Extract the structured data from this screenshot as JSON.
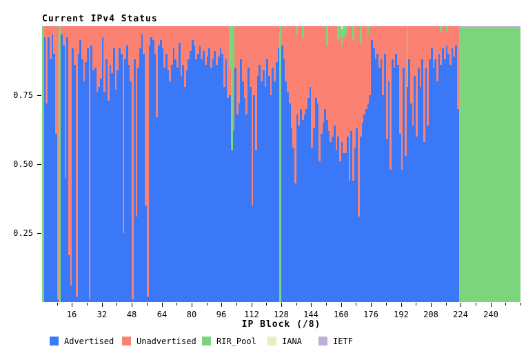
{
  "chart_data": {
    "type": "bar",
    "variant": "stacked-fraction-per-block",
    "title": "Current IPv4 Status",
    "xlabel": "IP Block (/8)",
    "blocks": 256,
    "ylim": [
      0,
      1
    ],
    "grid": "off",
    "legend_position": "bottom",
    "y_ticks": [
      {
        "value": 0.75,
        "label": "0.75"
      },
      {
        "value": 0.5,
        "label": "0.50"
      },
      {
        "value": 0.25,
        "label": "0.25"
      }
    ],
    "x_major_ticks": [
      16,
      32,
      48,
      64,
      80,
      96,
      112,
      128,
      144,
      160,
      176,
      192,
      208,
      224,
      240
    ],
    "x_minor_tick_step": 8,
    "colors": {
      "advertised": "#3a78f8",
      "unadvertised": "#fb8272",
      "rir_pool": "#7cd57c",
      "iana": "#ebebc4",
      "ietf": "#bcaed8"
    },
    "legend": [
      {
        "label": "Advertised",
        "key": "advertised",
        "color": "#3a78f8"
      },
      {
        "label": "Unadvertised",
        "key": "unadvertised",
        "color": "#fb8272"
      },
      {
        "label": "RIR_Pool",
        "key": "rir_pool",
        "color": "#7cd57c"
      },
      {
        "label": "IANA",
        "key": "iana",
        "color": "#ebebc4"
      },
      {
        "label": "IETF",
        "key": "ietf",
        "color": "#bcaed8"
      }
    ],
    "series": {
      "advertised": [
        0,
        0.96,
        0.72,
        0.96,
        0.88,
        0.97,
        0.9,
        0.61,
        0.01,
        0,
        0.97,
        0.93,
        0.45,
        0.96,
        0.17,
        0.06,
        0.92,
        0.86,
        0.02,
        0.9,
        0.95,
        0.88,
        0.8,
        0.87,
        0.92,
        0.01,
        0.93,
        0.84,
        0.85,
        0.76,
        0.78,
        0.81,
        0.96,
        0.76,
        0.88,
        0.73,
        0.86,
        0.83,
        0.92,
        0.77,
        0.84,
        0.92,
        0.9,
        0.25,
        0.88,
        0.93,
        0.86,
        0.8,
        0.01,
        0.88,
        0.31,
        0.85,
        0.92,
        0.97,
        0.9,
        0.35,
        0.02,
        0.93,
        0.96,
        0.95,
        0.9,
        0.67,
        0.93,
        0.95,
        0.92,
        0.85,
        0.9,
        0.84,
        0.8,
        0.86,
        0.92,
        0.88,
        0.85,
        0.94,
        0.82,
        0.86,
        0.78,
        0.84,
        0.88,
        0.91,
        0.95,
        0.93,
        0.88,
        0.9,
        0.93,
        0.88,
        0.91,
        0.86,
        0.89,
        0.92,
        0.85,
        0.88,
        0.91,
        0.86,
        0.89,
        0.92,
        0.9,
        0.78,
        0.88,
        0.74,
        0.75,
        0.55,
        0.62,
        0.85,
        0.68,
        0.72,
        0.88,
        0.8,
        0.74,
        0.68,
        0.85,
        0.78,
        0.35,
        0.75,
        0.55,
        0.82,
        0.86,
        0.8,
        0.84,
        0.78,
        0.88,
        0.82,
        0.75,
        0.85,
        0.8,
        0.87,
        0.92,
        0,
        0.93,
        0.88,
        0.8,
        0.76,
        0.72,
        0.63,
        0.56,
        0.43,
        0.68,
        0.64,
        0.7,
        0.66,
        0.68,
        0.7,
        0.74,
        0.78,
        0.56,
        0.63,
        0.74,
        0.72,
        0.51,
        0.61,
        0.65,
        0.7,
        0.66,
        0.62,
        0.58,
        0.6,
        0.64,
        0.55,
        0.6,
        0.51,
        0.58,
        0.54,
        0.54,
        0.6,
        0.44,
        0.62,
        0.44,
        0.56,
        0.63,
        0.31,
        0.6,
        0.65,
        0.68,
        0.7,
        0.72,
        0.75,
        0.95,
        0.92,
        0.88,
        0.9,
        0.85,
        0.88,
        0.75,
        0.9,
        0.59,
        0.8,
        0.48,
        0.88,
        0.85,
        0.9,
        0.86,
        0.61,
        0.48,
        0.85,
        0.53,
        0.78,
        0.88,
        0.72,
        0.64,
        0.82,
        0.6,
        0.85,
        0.78,
        0.88,
        0.58,
        0.85,
        0.64,
        0.88,
        0.92,
        0.85,
        0.88,
        0.8,
        0.9,
        0.86,
        0.92,
        0.88,
        0.93,
        0.9,
        0.86,
        0.92,
        0.89,
        0.93,
        0.7,
        0,
        0,
        0,
        0,
        0,
        0,
        0,
        0,
        0,
        0,
        0,
        0,
        0,
        0,
        0,
        0,
        0,
        0,
        0,
        0,
        0,
        0,
        0,
        0,
        0,
        0,
        0,
        0,
        0,
        0,
        0,
        0,
        0
      ],
      "rir_pool_sparse": {
        "0": 1,
        "9": 1,
        "100": 0.15,
        "101": 0.45,
        "102": 0.16,
        "127": 1,
        "136": 0.03,
        "139": 0.04,
        "152": 0.07,
        "158": 0.05,
        "159": 0.04,
        "160": 0.06,
        "161": 0.04,
        "162": 0.03,
        "166": 0.05,
        "170": 0.06,
        "174": 0.03,
        "195": 0.22,
        "213": 0.02,
        "216": 0.02
      },
      "rir_pool_ranges": [
        [
          223,
          255,
          0.994
        ]
      ],
      "iana_sparse": {
        "160": 0.01
      },
      "ietf_ranges": [
        [
          223,
          255,
          0.006
        ]
      ],
      "unadvertised_rule": "1 - advertised - rir_pool - iana - ietf"
    }
  }
}
